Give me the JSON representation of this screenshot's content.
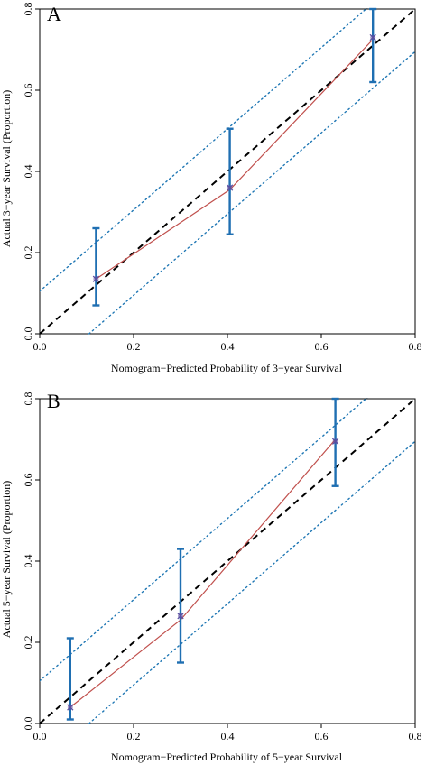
{
  "chart_data": [
    {
      "type": "scatter",
      "panel_label": "A",
      "xlabel": "Nomogram−Predicted Probability of 3−year Survival",
      "ylabel": "Actual 3−year Survival (Proportion)",
      "xlim": [
        0,
        0.8
      ],
      "ylim": [
        0,
        0.8
      ],
      "x_ticks": [
        "0.0",
        "0.2",
        "0.4",
        "0.6",
        "0.8"
      ],
      "y_ticks": [
        "0.0",
        "0.2",
        "0.4",
        "0.6",
        "0.8"
      ],
      "grid": false,
      "reference_line": {
        "style": "dashed",
        "color": "#000000",
        "from": [
          0,
          0
        ],
        "to": [
          0.8,
          0.8
        ]
      },
      "band_lines": [
        {
          "style": "dotted",
          "color": "#1f77b4",
          "from": [
            0,
            0.105
          ],
          "to": [
            0.7,
            0.805
          ]
        },
        {
          "style": "dotted",
          "color": "#1f77b4",
          "from": [
            0.105,
            0
          ],
          "to": [
            0.8,
            0.695
          ]
        }
      ],
      "curve": {
        "color": "#c0504d",
        "x": [
          0.12,
          0.405,
          0.71
        ],
        "y": [
          0.135,
          0.355,
          0.725
        ]
      },
      "points": [
        {
          "x": 0.12,
          "y": 0.135,
          "ci_low": 0.07,
          "ci_high": 0.26
        },
        {
          "x": 0.405,
          "y": 0.36,
          "ci_low": 0.245,
          "ci_high": 0.505
        },
        {
          "x": 0.71,
          "y": 0.73,
          "ci_low": 0.62,
          "ci_high": 0.8
        }
      ],
      "errorbar_color": "#1f6fb2",
      "marker_color": "#5b4ea0"
    },
    {
      "type": "scatter",
      "panel_label": "B",
      "xlabel": "Nomogram−Predicted Probability of 5−year Survival",
      "ylabel": "Actual 5−year Survival (Proportion)",
      "xlim": [
        0,
        0.8
      ],
      "ylim": [
        0,
        0.8
      ],
      "x_ticks": [
        "0.0",
        "0.2",
        "0.4",
        "0.6",
        "0.8"
      ],
      "y_ticks": [
        "0.0",
        "0.2",
        "0.4",
        "0.6",
        "0.8"
      ],
      "grid": false,
      "reference_line": {
        "style": "dashed",
        "color": "#000000",
        "from": [
          0,
          0
        ],
        "to": [
          0.8,
          0.8
        ]
      },
      "band_lines": [
        {
          "style": "dotted",
          "color": "#1f77b4",
          "from": [
            0,
            0.105
          ],
          "to": [
            0.7,
            0.805
          ]
        },
        {
          "style": "dotted",
          "color": "#1f77b4",
          "from": [
            0.105,
            0
          ],
          "to": [
            0.8,
            0.695
          ]
        }
      ],
      "curve": {
        "color": "#c0504d",
        "x": [
          0.065,
          0.3,
          0.63
        ],
        "y": [
          0.04,
          0.255,
          0.7
        ]
      },
      "points": [
        {
          "x": 0.065,
          "y": 0.04,
          "ci_low": 0.01,
          "ci_high": 0.21
        },
        {
          "x": 0.3,
          "y": 0.265,
          "ci_low": 0.15,
          "ci_high": 0.43
        },
        {
          "x": 0.63,
          "y": 0.695,
          "ci_low": 0.585,
          "ci_high": 0.8
        }
      ],
      "errorbar_color": "#1f6fb2",
      "marker_color": "#5b4ea0"
    }
  ]
}
